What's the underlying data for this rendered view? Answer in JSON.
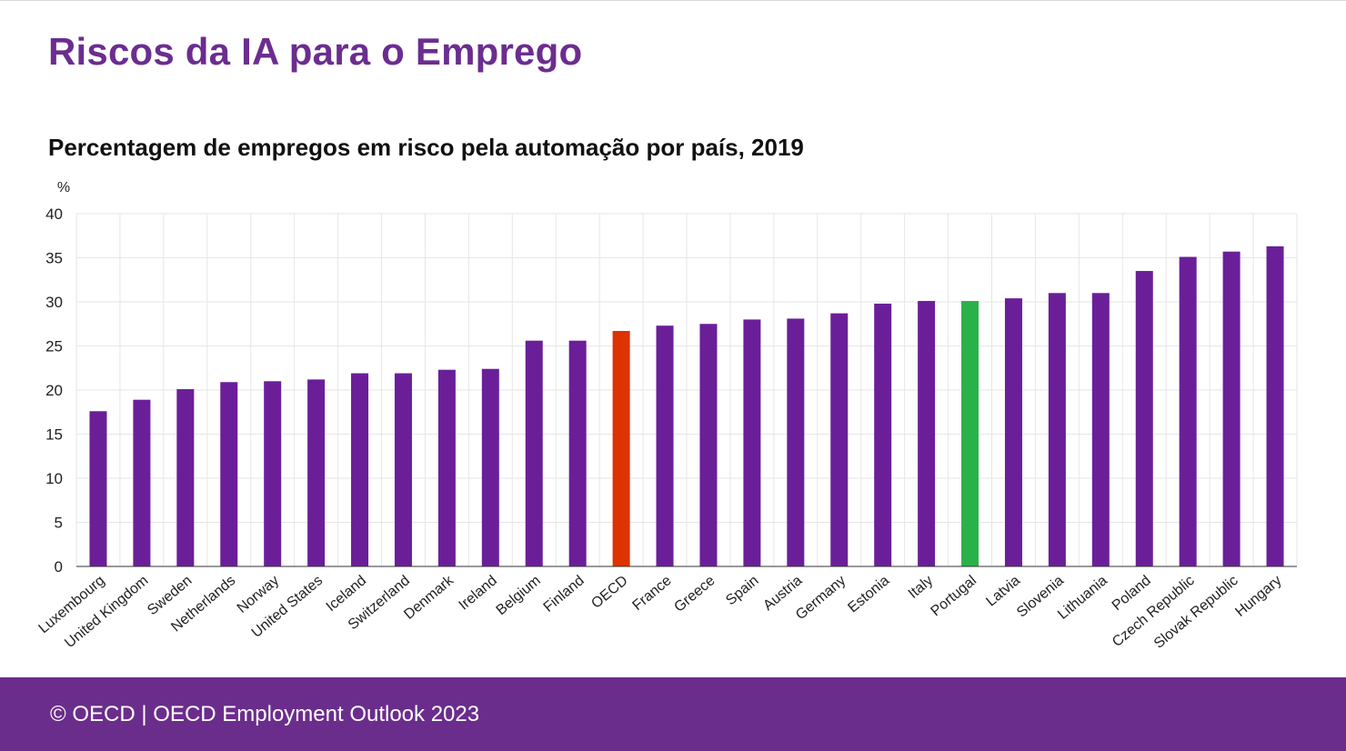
{
  "page": {
    "title": "Riscos da IA para o Emprego",
    "footer": "© OECD | OECD Employment Outlook 2023"
  },
  "colors": {
    "title": "#6b2d90",
    "bar_default": "#6a1f99",
    "bar_oecd": "#dd3300",
    "bar_portugal": "#2bb14a",
    "footer_bg": "#6b2d8b",
    "grid": "#e6e6e6"
  },
  "chart_data": {
    "type": "bar",
    "title": "Percentagem de empregos em risco pela automação por país, 2019",
    "ylabel": "%",
    "ylim": [
      0,
      40
    ],
    "yticks": [
      0,
      5,
      10,
      15,
      20,
      25,
      30,
      35,
      40
    ],
    "grid": true,
    "categories": [
      "Luxembourg",
      "United Kingdom",
      "Sweden",
      "Netherlands",
      "Norway",
      "United States",
      "Iceland",
      "Switzerland",
      "Denmark",
      "Ireland",
      "Belgium",
      "Finland",
      "OECD",
      "France",
      "Greece",
      "Spain",
      "Austria",
      "Germany",
      "Estonia",
      "Italy",
      "Portugal",
      "Latvia",
      "Slovenia",
      "Lithuania",
      "Poland",
      "Czech Republic",
      "Slovak Republic",
      "Hungary"
    ],
    "values": [
      17.6,
      18.9,
      20.1,
      20.9,
      21.0,
      21.2,
      21.9,
      21.9,
      22.3,
      22.4,
      25.6,
      25.6,
      26.7,
      27.3,
      27.5,
      28.0,
      28.1,
      28.7,
      29.8,
      30.1,
      30.1,
      30.4,
      31.0,
      31.0,
      33.5,
      35.1,
      35.7,
      36.3
    ],
    "highlights": {
      "OECD": "bar_oecd",
      "Portugal": "bar_portugal"
    }
  }
}
